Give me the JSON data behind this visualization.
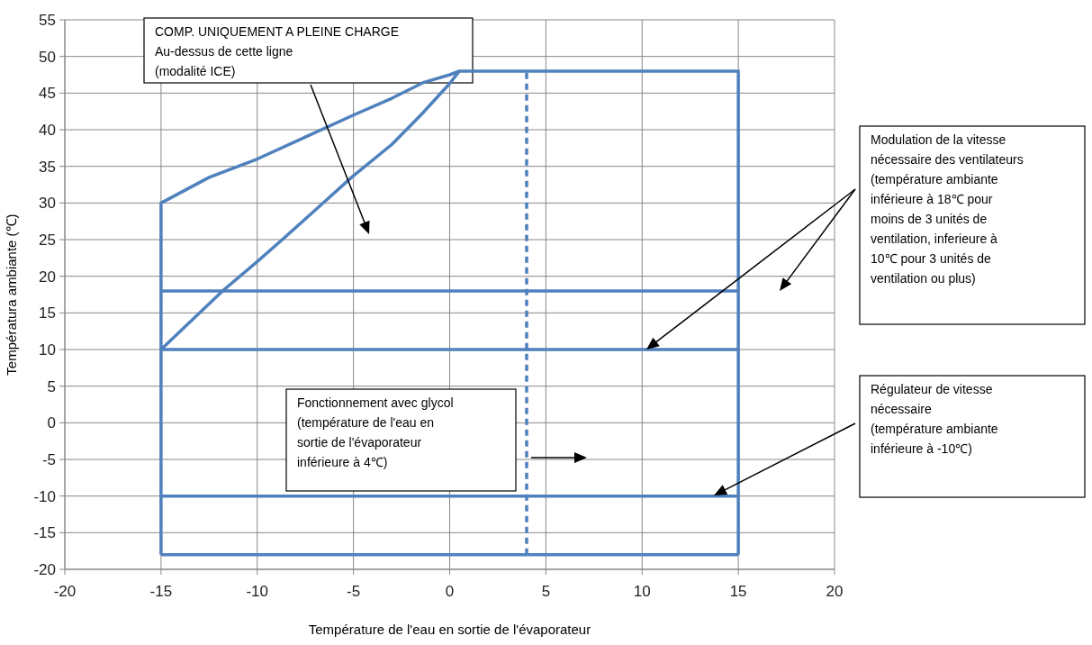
{
  "chart_data": {
    "type": "line",
    "xlabel": "Température de l'eau en sortie de l'évaporateur",
    "ylabel": "Températura ambiante (℃)",
    "xlim": [
      -20,
      20
    ],
    "xticks": [
      -20,
      -15,
      -10,
      -5,
      0,
      5,
      10,
      15,
      20
    ],
    "ylim": [
      -20,
      55
    ],
    "yticks": [
      -20,
      -15,
      -10,
      -5,
      0,
      5,
      10,
      15,
      20,
      25,
      30,
      35,
      40,
      45,
      50,
      55
    ],
    "grid": true,
    "marker": "none",
    "series": [
      {
        "color": "#4f81bd",
        "x": [
          -15,
          -15,
          -12.5,
          -10,
          -7.5,
          -5,
          -3,
          -1.4,
          0,
          0.5,
          15,
          15
        ],
        "values": [
          -18,
          30,
          33.5,
          36,
          39,
          42,
          44.3,
          46.4,
          47.5,
          48,
          48,
          -18
        ]
      },
      {
        "color": "#4f81bd",
        "x": [
          -15,
          15
        ],
        "values": [
          -18,
          -18
        ]
      },
      {
        "color": "#4f81bd",
        "x": [
          -15,
          -11.8,
          -10,
          -8.7,
          -7,
          -5.1,
          -3,
          -1.5,
          0,
          0.5
        ],
        "values": [
          10,
          18,
          22,
          25,
          29,
          33.5,
          38,
          42,
          46.3,
          48
        ]
      },
      {
        "color": "#4f81bd",
        "x": [
          -15,
          15
        ],
        "values": [
          18,
          18
        ]
      },
      {
        "color": "#4f81bd",
        "x": [
          -15,
          15
        ],
        "values": [
          10,
          10
        ]
      },
      {
        "color": "#4f81bd",
        "x": [
          -15,
          15
        ],
        "values": [
          -10,
          -10
        ]
      },
      {
        "color": "#4f81bd",
        "line_style": "dashed",
        "x": [
          4,
          4
        ],
        "values": [
          -18,
          48
        ]
      }
    ],
    "annotations": [
      "COMP. UNIQUEMENT A PLEINE CHARGE\nAu-dessus de cette ligne\n(modalité ICE)",
      "Modulation de la vitesse\nnécessaire des ventilateurs\n(température ambiante\ninférieure à 18℃ pour\nmoins de 3 unités de\nventilation, inferieure à\n10℃ pour 3 unités de\nventilation ou plus)",
      "Fonctionnement avec glycol\n(température de l'eau en\nsortie de l'évaporateur\ninférieure à 4℃)",
      "Régulateur de vitesse\nnécessaire\n(température ambiante\ninférieure à -10℃)"
    ]
  }
}
